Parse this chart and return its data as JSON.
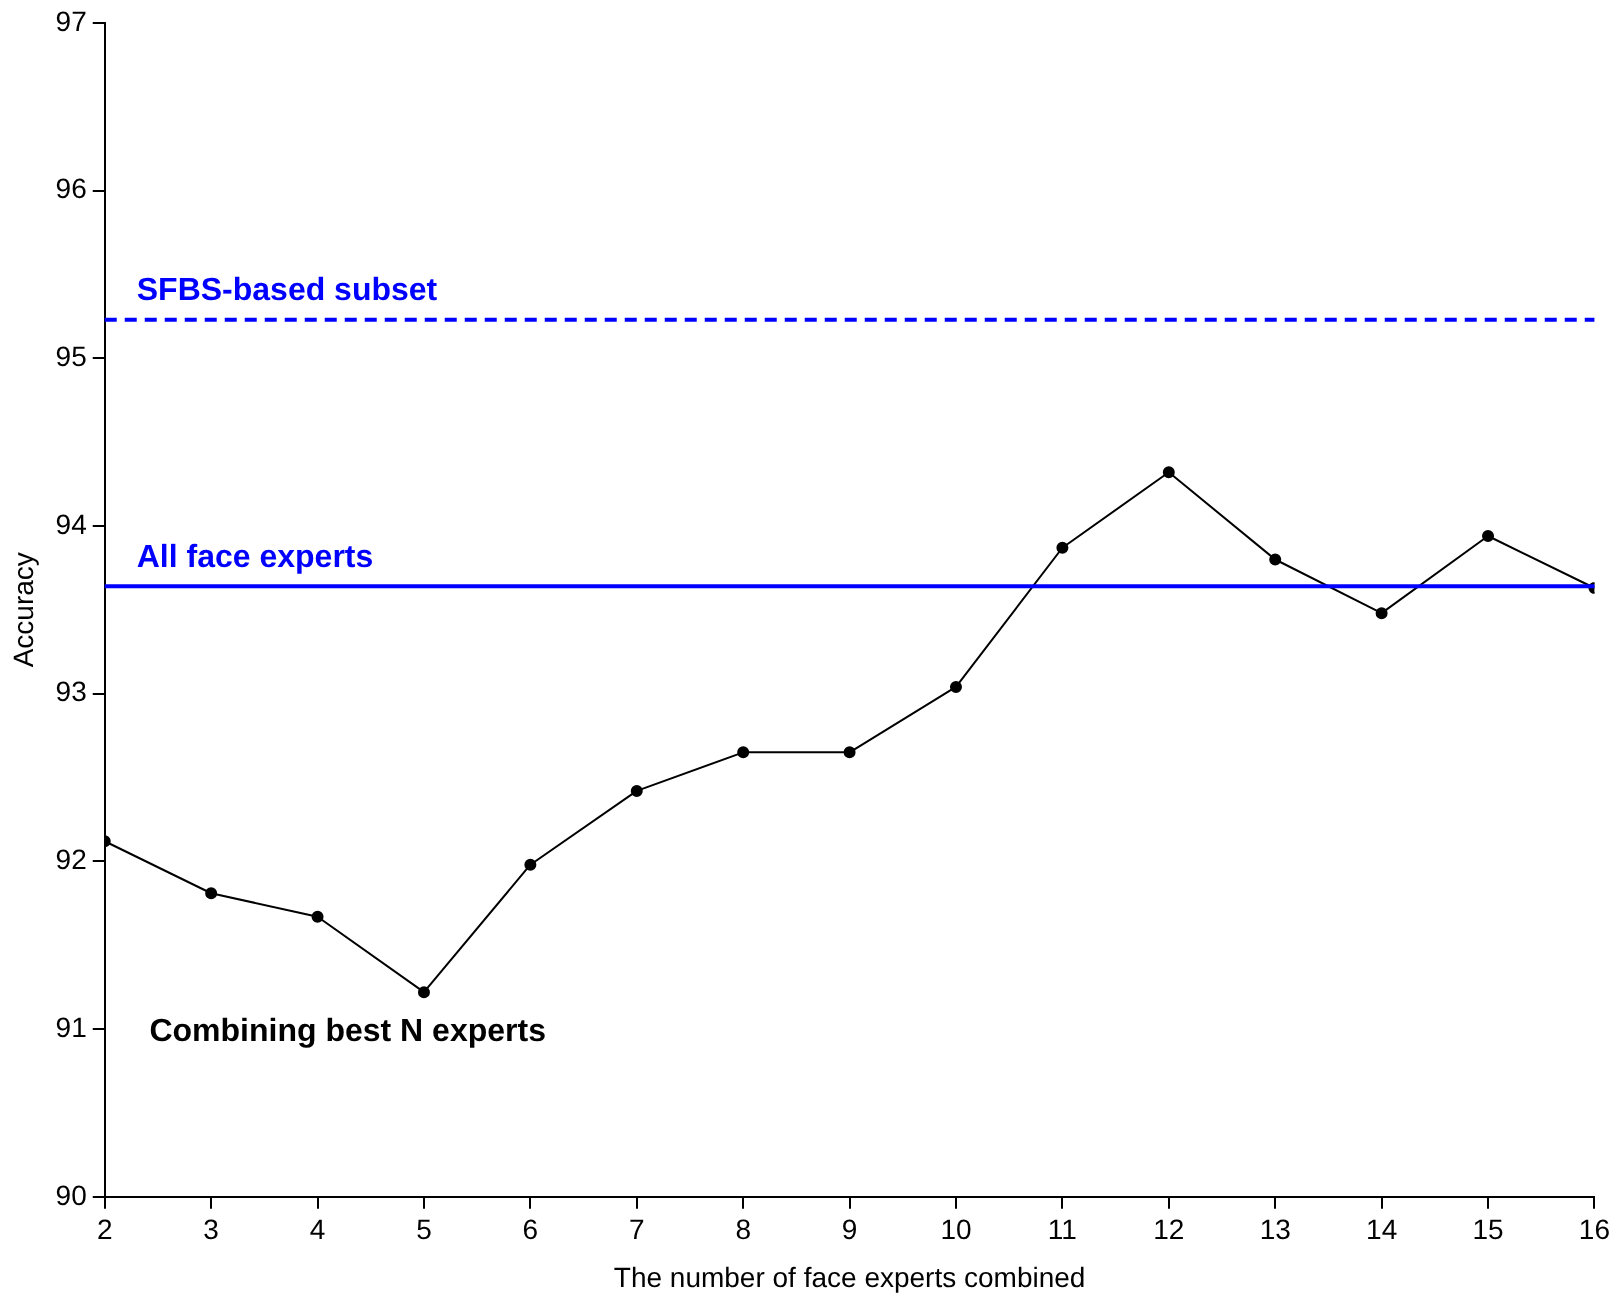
{
  "chart_data": {
    "type": "line",
    "xlabel": "The number of face experts combined",
    "ylabel": "Accuracy",
    "x": [
      2,
      3,
      4,
      5,
      6,
      7,
      8,
      9,
      10,
      11,
      12,
      13,
      14,
      15,
      16
    ],
    "series": [
      {
        "name": "Combining best N experts",
        "color": "#000000",
        "values": [
          92.12,
          91.81,
          91.67,
          91.22,
          91.98,
          92.42,
          92.65,
          92.65,
          93.04,
          93.87,
          94.32,
          93.8,
          93.48,
          93.94,
          93.63
        ]
      }
    ],
    "xlim": [
      2,
      16
    ],
    "xticks": [
      2,
      3,
      4,
      5,
      6,
      7,
      8,
      9,
      10,
      11,
      12,
      13,
      14,
      15,
      16
    ],
    "ylim": [
      90,
      97
    ],
    "yticks": [
      90,
      91,
      92,
      93,
      94,
      95,
      96,
      97
    ],
    "ref_lines": [
      {
        "axis": "y",
        "value": 95.23,
        "label": "SFBS-based subset",
        "color": "#0000ff",
        "line_style": "dashed"
      },
      {
        "axis": "y",
        "value": 93.64,
        "label": "All face experts",
        "color": "#0000ff",
        "line_style": "solid"
      }
    ],
    "marker": "circle",
    "line_style": "solid",
    "grid": false,
    "legend": false
  }
}
